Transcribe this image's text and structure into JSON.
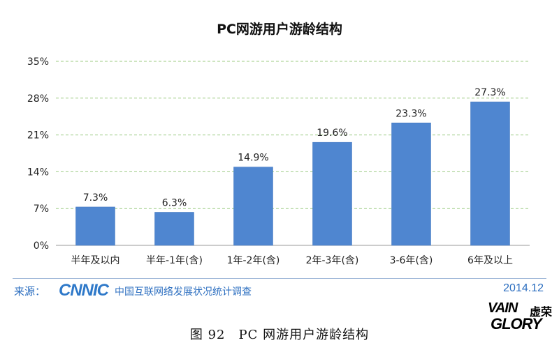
{
  "chart_data": {
    "type": "bar",
    "title": "PC网游用户游龄结构",
    "categories": [
      "半年及以内",
      "半年-1年(含)",
      "1年-2年(含)",
      "2年-3年(含)",
      "3-6年(含)",
      "6年及以上"
    ],
    "values": [
      7.3,
      6.3,
      14.9,
      19.6,
      23.3,
      27.3
    ],
    "data_labels": [
      "7.3%",
      "6.3%",
      "14.9%",
      "19.6%",
      "23.3%",
      "27.3%"
    ],
    "y_ticks": [
      "0%",
      "7%",
      "14%",
      "21%",
      "28%",
      "35%"
    ],
    "ylim": [
      0,
      35
    ],
    "unit": "%",
    "grid": true,
    "bar_color": "#4f86d0",
    "grid_color": "#9ccb82"
  },
  "footer": {
    "source_label": "来源：",
    "logo_text": "CNNIC",
    "org_name": "中国互联网络发展状况统计调查",
    "date": "2014.12"
  },
  "brand": {
    "line1": "VAIN",
    "cn": "虚荣",
    "line2": "GLORY"
  },
  "caption": "图 92　PC 网游用户游龄结构"
}
